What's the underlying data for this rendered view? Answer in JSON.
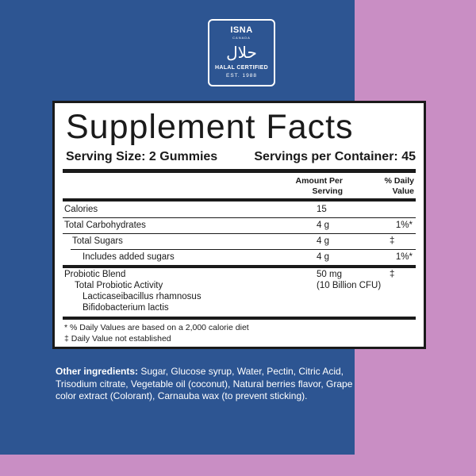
{
  "colors": {
    "left_panel": "#2d5592",
    "background": "#c98ec4"
  },
  "logo": {
    "brand": "ISNA",
    "country": "CANADA",
    "arabic": "حلال",
    "certified": "HALAL CERTIFIED",
    "est": "EST. 1988"
  },
  "facts": {
    "title": "Supplement Facts",
    "serving_size": "Serving Size: 2 Gummies",
    "servings_per_container": "Servings per Container: 45",
    "col_amount": [
      "Amount Per",
      "Serving"
    ],
    "col_dv": [
      "% Daily",
      "Value"
    ],
    "rows": [
      {
        "name": "Calories",
        "amount": "15",
        "dv": ""
      },
      {
        "name": "Total Carbohydrates",
        "amount": "4 g",
        "dv": "1%*"
      },
      {
        "name": "Total Sugars",
        "amount": "4 g",
        "dv": "‡"
      },
      {
        "name": "Includes added sugars",
        "amount": "4 g",
        "dv": "1%*"
      }
    ],
    "probiotic": {
      "name": "Probiotic Blend",
      "sub": "Total Probiotic Activity",
      "strains": [
        "Lacticaseibacillus rhamnosus",
        "Bifidobacterium lactis"
      ],
      "amount": "50 mg",
      "cfu": "(10 Billion CFU)",
      "dv": "‡"
    },
    "footnotes": [
      "* % Daily Values are based on a 2,000 calorie diet",
      "‡ Daily Value not established"
    ]
  },
  "other_ingredients": {
    "label": "Other ingredients:",
    "text": " Sugar, Glucose syrup, Water, Pectin, Citric Acid, Trisodium citrate, Vegetable oil (coconut), Natural berries flavor, Grape color extract (Colorant), Carnauba wax (to prevent sticking)."
  }
}
